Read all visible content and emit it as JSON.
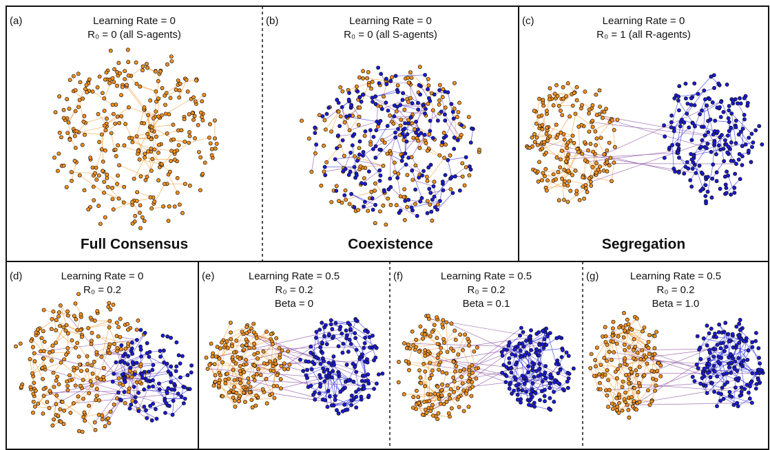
{
  "panels": [
    {
      "label": "(a)",
      "lines": [
        "Learning Rate = 0",
        "R₀ = 0 (all S-agents)"
      ],
      "caption": "Full Consensus"
    },
    {
      "label": "(b)",
      "lines": [
        "Learning Rate = 0",
        "R₀ = 0 (all S-agents)"
      ],
      "caption": "Coexistence"
    },
    {
      "label": "(c)",
      "lines": [
        "Learning Rate = 0",
        "R₀ = 1 (all R-agents)"
      ],
      "caption": "Segregation"
    },
    {
      "label": "(d)",
      "lines": [
        "Learning Rate = 0",
        "R₀ = 0.2"
      ]
    },
    {
      "label": "(e)",
      "lines": [
        "Learning Rate = 0.5",
        "R₀ = 0.2",
        "Beta = 0"
      ]
    },
    {
      "label": "(f)",
      "lines": [
        "Learning Rate = 0.5",
        "R₀ = 0.2",
        "Beta = 0.1"
      ]
    },
    {
      "label": "(g)",
      "lines": [
        "Learning Rate = 0.5",
        "R₀ = 0.2",
        "Beta = 1.0"
      ]
    }
  ]
}
